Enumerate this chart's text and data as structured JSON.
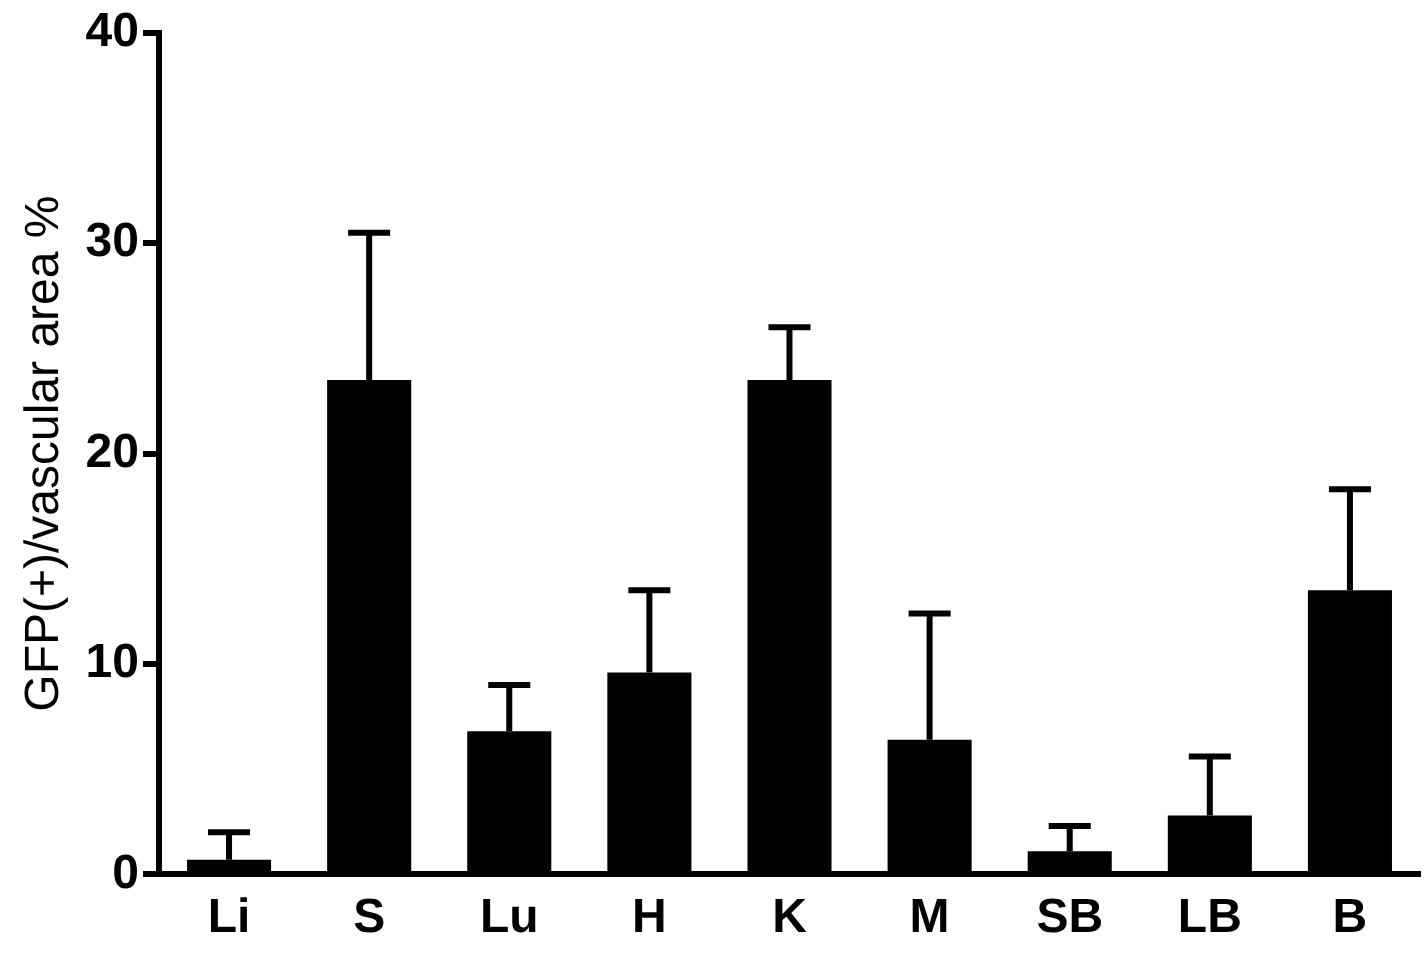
{
  "chart_data": {
    "type": "bar",
    "ylabel": "GFP(+)/vascular area %",
    "categories": [
      "Li",
      "S",
      "Lu",
      "H",
      "K",
      "M",
      "SB",
      "LB",
      "B"
    ],
    "values": [
      0.7,
      23.5,
      6.8,
      9.6,
      23.5,
      6.4,
      1.1,
      2.8,
      13.5
    ],
    "errors": [
      [
        0.7,
        2.0
      ],
      [
        23.5,
        30.5
      ],
      [
        6.8,
        9.0
      ],
      [
        9.6,
        13.5
      ],
      [
        23.5,
        26.0
      ],
      [
        6.4,
        12.4
      ],
      [
        1.1,
        2.3
      ],
      [
        2.8,
        5.6
      ],
      [
        13.5,
        18.3
      ]
    ],
    "color": "#000000",
    "ylim": [
      0,
      40
    ],
    "yticks": [
      0,
      10,
      20,
      30,
      40
    ],
    "grid": false,
    "legend": false
  }
}
